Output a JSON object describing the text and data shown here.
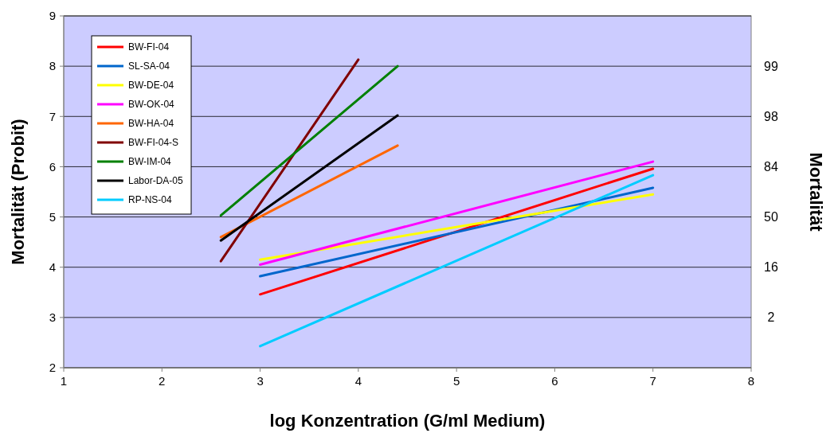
{
  "chart_data": {
    "type": "line",
    "xlabel": "log Konzentration (G/ml Medium)",
    "ylabel": "Mortalität (Probit)",
    "y2label": "Mortalität",
    "xlim": [
      1,
      8
    ],
    "xticks": [
      1,
      2,
      3,
      4,
      5,
      6,
      7,
      8
    ],
    "ylim": [
      2,
      9
    ],
    "yticks": [
      2,
      3,
      4,
      5,
      6,
      7,
      8,
      9
    ],
    "annotations": [
      "2",
      "16",
      "50",
      "84",
      "98",
      "99"
    ],
    "grid": "y",
    "legend": "top left",
    "line_style": "solid",
    "series": [
      {
        "name": "BW-FI-04",
        "color": "#ff0000",
        "x": [
          3,
          7
        ],
        "values": [
          3.46,
          5.96
        ]
      },
      {
        "name": "SL-SA-04",
        "color": "#0066cc",
        "x": [
          3,
          7
        ],
        "values": [
          3.82,
          5.58
        ]
      },
      {
        "name": "BW-DE-04",
        "color": "#ffff00",
        "x": [
          3,
          7
        ],
        "values": [
          4.15,
          5.45
        ]
      },
      {
        "name": "BW-OK-04",
        "color": "#ff00ff",
        "x": [
          3,
          7
        ],
        "values": [
          4.05,
          6.1
        ]
      },
      {
        "name": "BW-HA-04",
        "color": "#ff6600",
        "x": [
          2.6,
          4.4
        ],
        "values": [
          4.6,
          6.42
        ]
      },
      {
        "name": "BW-FI-04-S",
        "color": "#800000",
        "x": [
          2.6,
          4
        ],
        "values": [
          4.12,
          8.13
        ]
      },
      {
        "name": "BW-IM-04",
        "color": "#008000",
        "x": [
          2.6,
          4.4
        ],
        "values": [
          5.03,
          8.0
        ]
      },
      {
        "name": "Labor-DA-05",
        "color": "#000000",
        "x": [
          2.6,
          4.4
        ],
        "values": [
          4.53,
          7.02
        ]
      },
      {
        "name": "RP-NS-04",
        "color": "#00ccff",
        "x": [
          3,
          7
        ],
        "values": [
          2.43,
          5.83
        ]
      }
    ]
  }
}
